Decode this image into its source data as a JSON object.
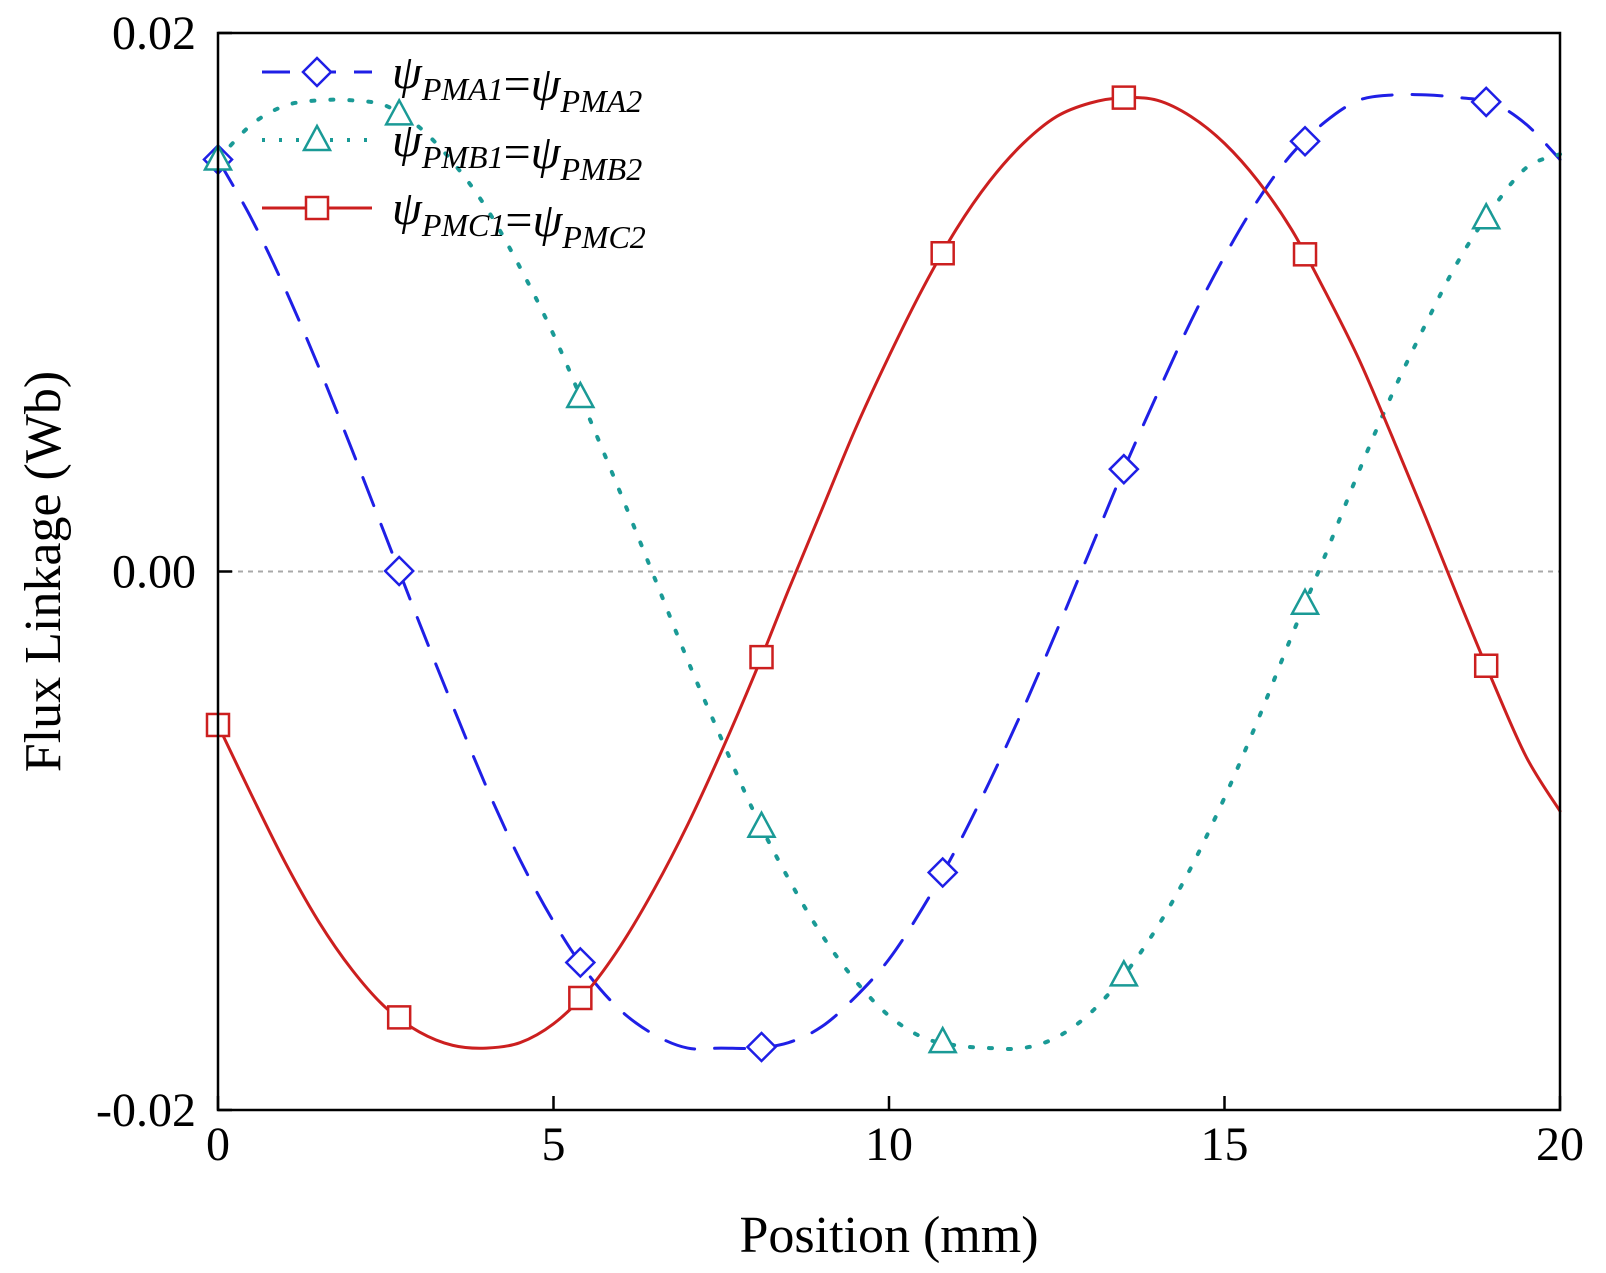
{
  "chart_data": {
    "type": "line",
    "title": "",
    "xlabel": "Position (mm)",
    "ylabel": "Flux Linkage (Wb)",
    "xlim": [
      0,
      20
    ],
    "ylim": [
      -0.02,
      0.02
    ],
    "x_ticks": [
      0,
      5,
      10,
      15,
      20
    ],
    "x_tick_labels": [
      "0",
      "5",
      "10",
      "15",
      "20"
    ],
    "y_ticks": [
      -0.02,
      0.0,
      0.02
    ],
    "y_tick_labels": [
      "-0.02",
      "0.00",
      "0.02"
    ],
    "reference_lines": [
      0.0,
      0.02
    ],
    "legend_position": "top-left",
    "grid": false,
    "series": [
      {
        "name": "ψPMA1=ψPMA2",
        "legend_parts": [
          [
            "ψ",
            "PMA1"
          ],
          [
            "=",
            ""
          ],
          [
            "ψ",
            "PMA2"
          ]
        ],
        "color": "#1f1fe6",
        "line_style": "dashed",
        "marker": "diamond",
        "marker_x": [
          0,
          2.7,
          5.4,
          8.1,
          10.8,
          13.5,
          16.2,
          18.9
        ],
        "x": [
          0,
          0.5,
          1,
          1.5,
          2,
          2.5,
          3,
          3.5,
          4,
          4.5,
          5,
          5.5,
          6,
          6.5,
          7,
          7.5,
          8,
          8.5,
          9,
          9.5,
          10,
          10.5,
          11,
          11.5,
          12,
          12.5,
          13,
          13.5,
          14,
          14.5,
          15,
          15.5,
          16,
          16.5,
          17,
          17.5,
          18,
          18.5,
          19,
          19.5,
          20
        ],
        "y": [
          0.0153,
          0.0131,
          0.0105,
          0.0076,
          0.0045,
          0.0013,
          -0.0019,
          -0.005,
          -0.008,
          -0.0107,
          -0.013,
          -0.0149,
          -0.0163,
          -0.0172,
          -0.0177,
          -0.0177,
          -0.0177,
          -0.0175,
          -0.0169,
          -0.0158,
          -0.0144,
          -0.0125,
          -0.0103,
          -0.0078,
          -0.0051,
          -0.0022,
          0.0008,
          0.0038,
          0.0066,
          0.0093,
          0.0117,
          0.0138,
          0.0155,
          0.0167,
          0.0175,
          0.0177,
          0.0177,
          0.0176,
          0.0174,
          0.0166,
          0.0153
        ]
      },
      {
        "name": "ψPMB1=ψPMB2",
        "legend_parts": [
          [
            "ψ",
            "PMB1"
          ],
          [
            "=",
            ""
          ],
          [
            "ψ",
            "PMB2"
          ]
        ],
        "color": "#1a9a96",
        "line_style": "dotted",
        "marker": "triangle",
        "marker_x": [
          0,
          2.7,
          5.4,
          8.1,
          10.8,
          13.5,
          16.2,
          18.9
        ],
        "x": [
          0,
          0.5,
          1,
          1.5,
          2,
          2.5,
          3,
          3.5,
          4,
          4.5,
          5,
          5.5,
          6,
          6.5,
          7,
          7.5,
          8,
          8.5,
          9,
          9.5,
          10,
          10.5,
          11,
          11.5,
          12,
          12.5,
          13,
          13.5,
          14,
          14.5,
          15,
          15.5,
          16,
          16.5,
          17,
          17.5,
          18,
          18.5,
          19,
          19.5,
          20
        ],
        "y": [
          0.0153,
          0.0166,
          0.0173,
          0.0175,
          0.0175,
          0.0173,
          0.0165,
          0.0152,
          0.0135,
          0.0113,
          0.0088,
          0.0059,
          0.0029,
          -0.0002,
          -0.0033,
          -0.0062,
          -0.009,
          -0.0114,
          -0.0135,
          -0.0152,
          -0.0165,
          -0.0173,
          -0.0176,
          -0.0177,
          -0.0177,
          -0.0173,
          -0.0164,
          -0.015,
          -0.0132,
          -0.011,
          -0.0084,
          -0.0055,
          -0.0024,
          0.0006,
          0.0037,
          0.0066,
          0.0092,
          0.0116,
          0.0135,
          0.015,
          0.0155
        ]
      },
      {
        "name": "ψPMC1=ψPMC2",
        "legend_parts": [
          [
            "ψ",
            "PMC1"
          ],
          [
            "=",
            ""
          ],
          [
            "ψ",
            "PMC2"
          ]
        ],
        "color": "#cc1f1f",
        "line_style": "solid",
        "marker": "square",
        "marker_x": [
          0,
          2.7,
          5.4,
          8.1,
          10.8,
          13.5,
          16.2,
          18.9
        ],
        "x": [
          0,
          0.5,
          1,
          1.5,
          2,
          2.5,
          3,
          3.5,
          4,
          4.5,
          5,
          5.5,
          6,
          6.5,
          7,
          7.5,
          8,
          8.5,
          9,
          9.5,
          10,
          10.5,
          11,
          11.5,
          12,
          12.5,
          13,
          13.5,
          14,
          14.5,
          15,
          15.5,
          16,
          16.5,
          17,
          17.5,
          18,
          18.5,
          19,
          19.5,
          20
        ],
        "y": [
          -0.0057,
          -0.0083,
          -0.0108,
          -0.013,
          -0.0148,
          -0.0162,
          -0.0171,
          -0.0176,
          -0.0177,
          -0.0175,
          -0.0168,
          -0.0156,
          -0.0139,
          -0.0118,
          -0.0094,
          -0.0067,
          -0.0038,
          -0.0007,
          0.0023,
          0.0053,
          0.008,
          0.0105,
          0.0127,
          0.0145,
          0.0159,
          0.0169,
          0.0174,
          0.0176,
          0.0175,
          0.0169,
          0.0159,
          0.0145,
          0.0127,
          0.0104,
          0.0079,
          0.005,
          0.002,
          -0.0011,
          -0.0041,
          -0.0069,
          -0.0089
        ]
      }
    ]
  }
}
